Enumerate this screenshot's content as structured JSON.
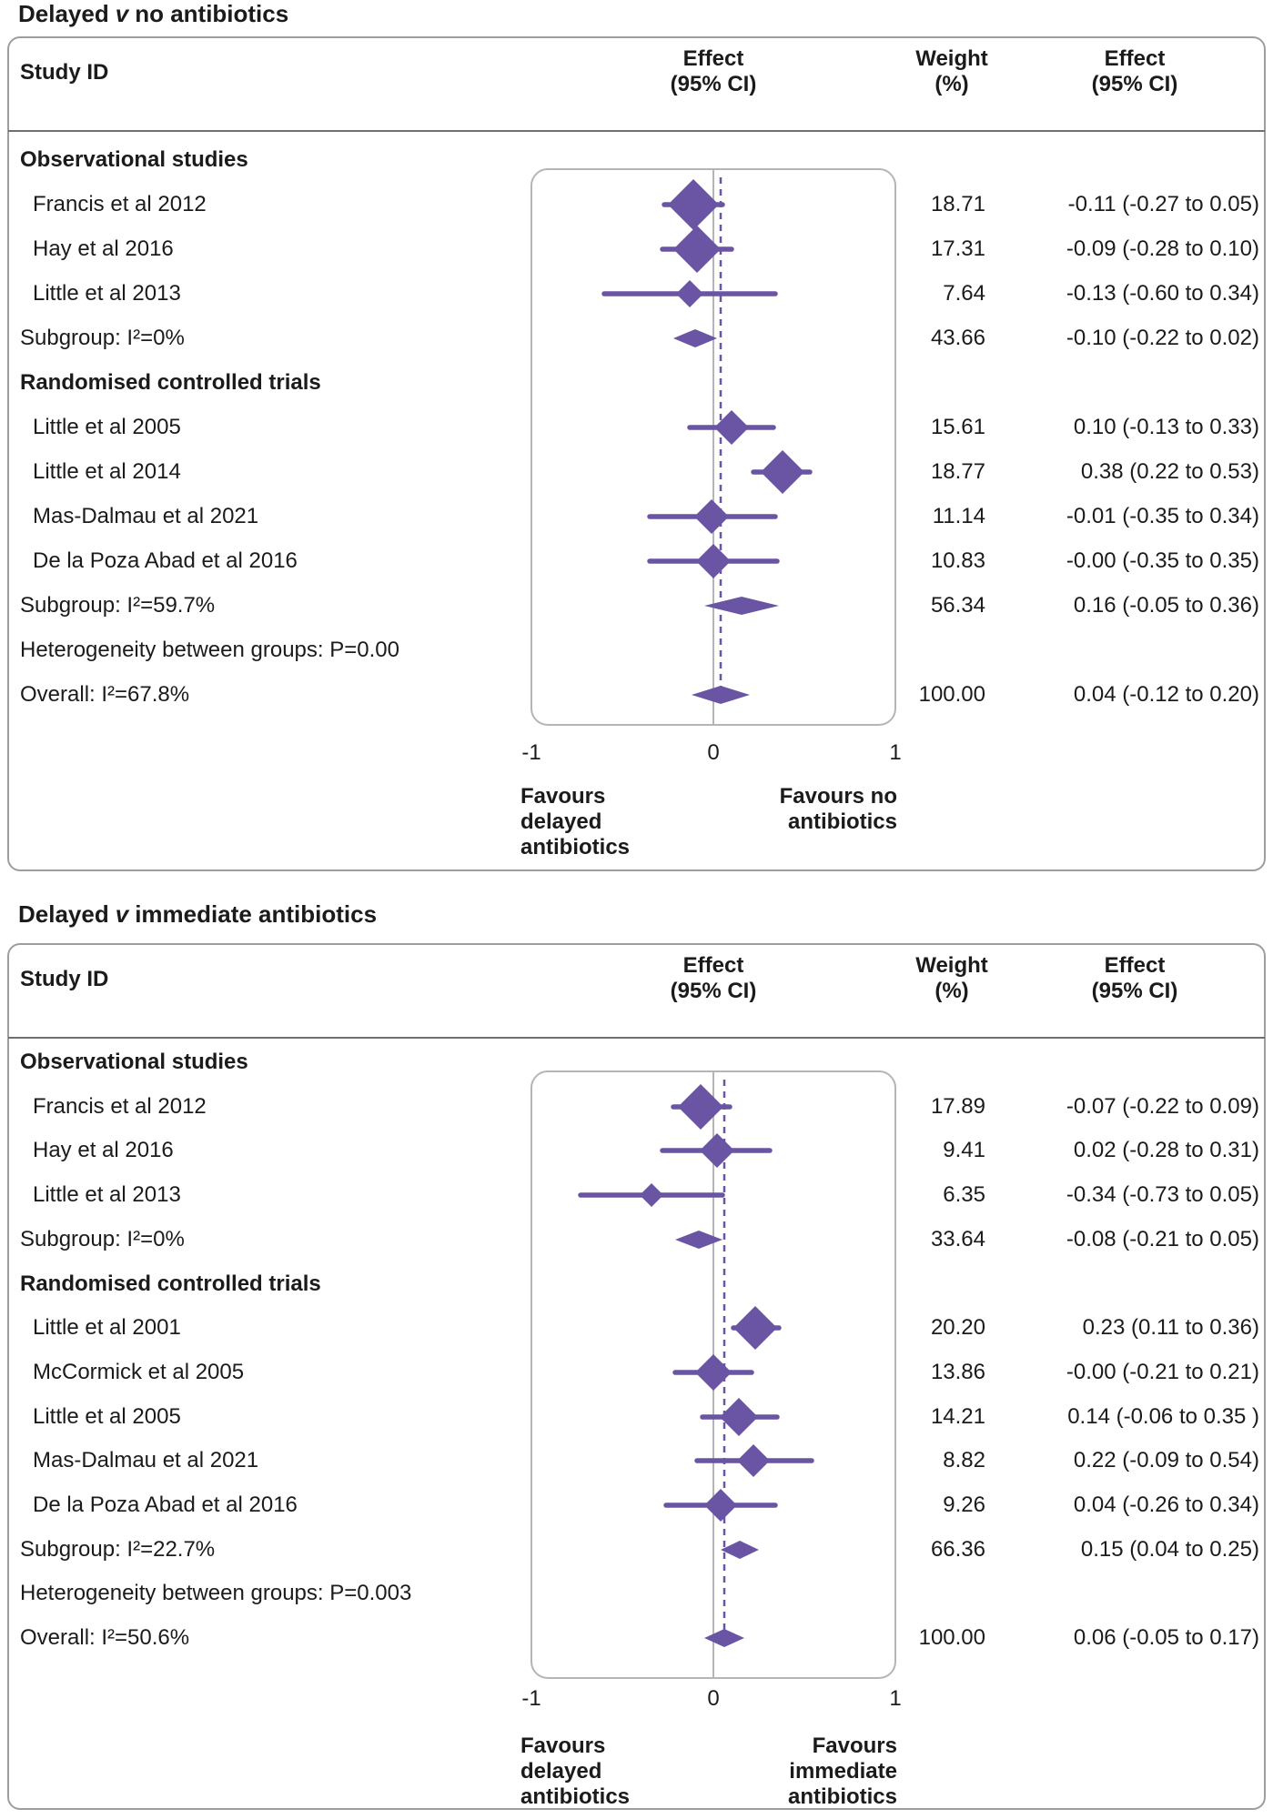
{
  "colors": {
    "purple": "#6a55a4",
    "outer_border": "#9e9e9e",
    "inner_border": "#b5b5b5",
    "zero_line": "#b5b5b5",
    "separator": "#6f6f6f",
    "text": "#1b1b1b"
  },
  "chart_data": [
    {
      "type": "forest",
      "title_parts": {
        "prefix": "Delayed",
        "v": "v",
        "suffix": "no antibiotics"
      },
      "columns": {
        "study": "Study ID",
        "effect_plot_l1": "Effect",
        "effect_plot_l2": "(95% CI)",
        "weight_l1": "Weight",
        "weight_l2": "(%)",
        "effect_col_l1": "Effect",
        "effect_col_l2": "(95% CI)"
      },
      "axis": {
        "xlim": [
          -1,
          1
        ],
        "ticks": [
          "-1",
          "0",
          "1"
        ]
      },
      "favours_left": [
        "Favours",
        "delayed",
        "antibiotics"
      ],
      "favours_right": [
        "Favours no",
        "antibiotics"
      ],
      "rows": [
        {
          "type": "section",
          "label": "Observational studies"
        },
        {
          "type": "study",
          "label": "Francis et al 2012",
          "weight": "18.71",
          "effect_text": "-0.11 (-0.27 to 0.05)",
          "est": -0.11,
          "lo": -0.27,
          "hi": 0.05,
          "ms": 56
        },
        {
          "type": "study",
          "label": "Hay et al 2016",
          "weight": "17.31",
          "effect_text": "-0.09 (-0.28 to 0.10)",
          "est": -0.09,
          "lo": -0.28,
          "hi": 0.1,
          "ms": 52
        },
        {
          "type": "study",
          "label": "Little et al 2013",
          "weight": "7.64",
          "effect_text": "-0.13 (-0.60 to 0.34)",
          "est": -0.13,
          "lo": -0.6,
          "hi": 0.34,
          "ms": 30
        },
        {
          "type": "subgroup",
          "label": "Subgroup: I²=0%",
          "weight": "43.66",
          "effect_text": "-0.10 (-0.22 to 0.02)",
          "est": -0.1,
          "lo": -0.22,
          "hi": 0.02
        },
        {
          "type": "section",
          "label": "Randomised controlled trials"
        },
        {
          "type": "study",
          "label": "Little et al 2005",
          "weight": "15.61",
          "effect_text": "0.10 (-0.13 to 0.33)",
          "est": 0.1,
          "lo": -0.13,
          "hi": 0.33,
          "ms": 38
        },
        {
          "type": "study",
          "label": "Little et al 2014",
          "weight": "18.77",
          "effect_text": "0.38 (0.22 to 0.53)",
          "est": 0.38,
          "lo": 0.22,
          "hi": 0.53,
          "ms": 48
        },
        {
          "type": "study",
          "label": "Mas-Dalmau et al 2021",
          "weight": "11.14",
          "effect_text": "-0.01 (-0.35 to 0.34)",
          "est": -0.01,
          "lo": -0.35,
          "hi": 0.34,
          "ms": 38
        },
        {
          "type": "study",
          "label": "De la Poza Abad et al 2016",
          "weight": "10.83",
          "effect_text": "-0.00 (-0.35 to 0.35)",
          "est": 0.0,
          "lo": -0.35,
          "hi": 0.35,
          "ms": 38
        },
        {
          "type": "subgroup",
          "label": "Subgroup: I²=59.7%",
          "weight": "56.34",
          "effect_text": "0.16 (-0.05 to 0.36)",
          "est": 0.16,
          "lo": -0.05,
          "hi": 0.36
        },
        {
          "type": "text",
          "label": "Heterogeneity between groups: P=0.00"
        },
        {
          "type": "overall",
          "label": "Overall: I²=67.8%",
          "weight": "100.00",
          "effect_text": "0.04 (-0.12 to 0.20)",
          "est": 0.04,
          "lo": -0.12,
          "hi": 0.2
        }
      ]
    },
    {
      "type": "forest",
      "title_parts": {
        "prefix": "Delayed",
        "v": "v",
        "suffix": "immediate antibiotics"
      },
      "columns": {
        "study": "Study ID",
        "effect_plot_l1": "Effect",
        "effect_plot_l2": "(95% CI)",
        "weight_l1": "Weight",
        "weight_l2": "(%)",
        "effect_col_l1": "Effect",
        "effect_col_l2": "(95% CI)"
      },
      "axis": {
        "xlim": [
          -1,
          1
        ],
        "ticks": [
          "-1",
          "0",
          "1"
        ]
      },
      "favours_left": [
        "Favours",
        "delayed",
        "antibiotics"
      ],
      "favours_right": [
        "Favours",
        "immediate",
        "antibiotics"
      ],
      "rows": [
        {
          "type": "section",
          "label": "Observational studies"
        },
        {
          "type": "study",
          "label": "Francis et al 2012",
          "weight": "17.89",
          "effect_text": "-0.07 (-0.22 to 0.09)",
          "est": -0.07,
          "lo": -0.22,
          "hi": 0.09,
          "ms": 50
        },
        {
          "type": "study",
          "label": "Hay et al 2016",
          "weight": "9.41",
          "effect_text": "0.02 (-0.28 to 0.31)",
          "est": 0.02,
          "lo": -0.28,
          "hi": 0.31,
          "ms": 38
        },
        {
          "type": "study",
          "label": "Little et al 2013",
          "weight": "6.35",
          "effect_text": "-0.34 (-0.73 to 0.05)",
          "est": -0.34,
          "lo": -0.73,
          "hi": 0.05,
          "ms": 26
        },
        {
          "type": "subgroup",
          "label": "Subgroup: I²=0%",
          "weight": "33.64",
          "effect_text": "-0.08 (-0.21 to 0.05)",
          "est": -0.08,
          "lo": -0.21,
          "hi": 0.05
        },
        {
          "type": "section",
          "label": "Randomised controlled trials"
        },
        {
          "type": "study",
          "label": "Little et al 2001",
          "weight": "20.20",
          "effect_text": "0.23 (0.11 to 0.36)",
          "est": 0.23,
          "lo": 0.11,
          "hi": 0.36,
          "ms": 48
        },
        {
          "type": "study",
          "label": "McCormick et al 2005",
          "weight": "13.86",
          "effect_text": "-0.00 (-0.21 to 0.21)",
          "est": 0.0,
          "lo": -0.21,
          "hi": 0.21,
          "ms": 40
        },
        {
          "type": "study",
          "label": "Little et al 2005",
          "weight": "14.21",
          "effect_text": "0.14 (-0.06 to 0.35 )",
          "est": 0.14,
          "lo": -0.06,
          "hi": 0.35,
          "ms": 42
        },
        {
          "type": "study",
          "label": "Mas-Dalmau et al 2021",
          "weight": "8.82",
          "effect_text": "0.22 (-0.09 to 0.54)",
          "est": 0.22,
          "lo": -0.09,
          "hi": 0.54,
          "ms": 36
        },
        {
          "type": "study",
          "label": "De la Poza Abad et al 2016",
          "weight": "9.26",
          "effect_text": "0.04 (-0.26 to 0.34)",
          "est": 0.04,
          "lo": -0.26,
          "hi": 0.34,
          "ms": 36
        },
        {
          "type": "subgroup",
          "label": "Subgroup: I²=22.7%",
          "weight": "66.36",
          "effect_text": "0.15 (0.04 to 0.25)",
          "est": 0.15,
          "lo": 0.04,
          "hi": 0.25
        },
        {
          "type": "text",
          "label": "Heterogeneity between groups: P=0.003"
        },
        {
          "type": "overall",
          "label": "Overall: I²=50.6%",
          "weight": "100.00",
          "effect_text": "0.06 (-0.05 to 0.17)",
          "est": 0.06,
          "lo": -0.05,
          "hi": 0.17
        }
      ]
    }
  ]
}
